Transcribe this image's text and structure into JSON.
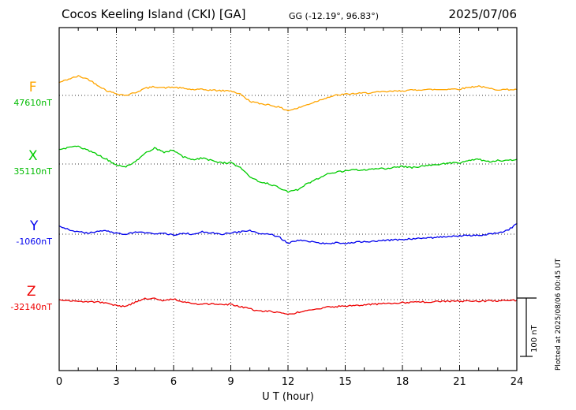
{
  "header": {
    "station": "Cocos Keeling Island (CKI)  [GA]",
    "coords": "GG (-12.19°,  96.83°)",
    "date": "2025/07/06"
  },
  "axis": {
    "xlabel": "U T (hour)",
    "ticks": [
      "0",
      "3",
      "6",
      "9",
      "12",
      "15",
      "18",
      "21",
      "24"
    ]
  },
  "side": {
    "scale_label": "100 nT",
    "plotted_note": "Plotted at 2025/08/06 00:45 UT"
  },
  "chart_data": {
    "type": "line",
    "title": "Cocos Keeling Island (CKI)  [GA]",
    "subtitle": "GG (-12.19°,  96.83°)",
    "date": "2025/07/06",
    "xlabel": "U T (hour)",
    "x_unit": "hour",
    "x_range": [
      0,
      24
    ],
    "x_ticks": [
      0,
      3,
      6,
      9,
      12,
      15,
      18,
      21,
      24
    ],
    "grid": "dotted vertical at 3h intervals, dotted horizontal at each component baseline",
    "scale_bar_nT": 100,
    "x": [
      0,
      0.5,
      1,
      1.5,
      2,
      2.5,
      3,
      3.5,
      4,
      4.5,
      5,
      5.5,
      6,
      6.5,
      7,
      7.5,
      8,
      8.5,
      9,
      9.5,
      10,
      10.5,
      11,
      11.5,
      12,
      12.5,
      13,
      13.5,
      14,
      14.5,
      15,
      15.5,
      16,
      16.5,
      17,
      17.5,
      18,
      18.5,
      19,
      19.5,
      20,
      20.5,
      21,
      21.5,
      22,
      22.5,
      23,
      23.5,
      24
    ],
    "series": [
      {
        "name": "F",
        "baseline_label": "47610nT",
        "baseline_nT": 47610,
        "color": "#FFA500",
        "label_color": "#00BB00",
        "values_offset_nT_from_baseline": true,
        "values": [
          22,
          28,
          33,
          28,
          18,
          8,
          3,
          0,
          5,
          12,
          15,
          13,
          14,
          12,
          10,
          10,
          9,
          8,
          8,
          2,
          -10,
          -14,
          -16,
          -20,
          -26,
          -22,
          -16,
          -10,
          -4,
          0,
          2,
          3,
          4,
          5,
          6,
          7,
          8,
          9,
          10,
          10,
          10,
          11,
          11,
          14,
          16,
          12,
          10,
          10,
          10
        ]
      },
      {
        "name": "X",
        "baseline_label": "35110nT",
        "baseline_nT": 35110,
        "color": "#00CC00",
        "label_color": "#00BB00",
        "values_offset_nT_from_baseline": true,
        "values": [
          25,
          28,
          30,
          24,
          16,
          8,
          -2,
          -5,
          5,
          18,
          27,
          20,
          24,
          12,
          8,
          10,
          6,
          2,
          2,
          -6,
          -22,
          -30,
          -34,
          -40,
          -48,
          -44,
          -34,
          -26,
          -18,
          -14,
          -12,
          -10,
          -10,
          -8,
          -8,
          -6,
          -4,
          -6,
          -4,
          -2,
          0,
          2,
          2,
          6,
          8,
          4,
          6,
          6,
          8
        ]
      },
      {
        "name": "Y",
        "baseline_label": "-1060nT",
        "baseline_nT": -1060,
        "color": "#0000EE",
        "label_color": "#0000EE",
        "values_offset_nT_from_baseline": true,
        "values": [
          14,
          8,
          4,
          2,
          4,
          6,
          2,
          0,
          4,
          2,
          0,
          2,
          -2,
          2,
          0,
          4,
          2,
          0,
          2,
          4,
          6,
          2,
          0,
          -4,
          -16,
          -10,
          -12,
          -14,
          -16,
          -15,
          -16,
          -14,
          -13,
          -12,
          -11,
          -10,
          -9,
          -8,
          -7,
          -6,
          -5,
          -4,
          -3,
          -2,
          -2,
          0,
          2,
          6,
          18
        ]
      },
      {
        "name": "Z",
        "baseline_label": "-32140nT",
        "baseline_nT": -32140,
        "color": "#EE0000",
        "label_color": "#EE0000",
        "values_offset_nT_from_baseline": true,
        "values": [
          0,
          -2,
          -2,
          -4,
          -4,
          -6,
          -10,
          -12,
          -4,
          2,
          2,
          -2,
          1,
          -4,
          -7,
          -8,
          -7,
          -9,
          -8,
          -12,
          -16,
          -20,
          -20,
          -22,
          -26,
          -22,
          -18,
          -16,
          -13,
          -12,
          -11,
          -10,
          -9,
          -8,
          -7,
          -6,
          -5,
          -5,
          -4,
          -4,
          -3,
          -3,
          -3,
          -2,
          -3,
          -2,
          -2,
          -2,
          -1
        ]
      }
    ]
  }
}
